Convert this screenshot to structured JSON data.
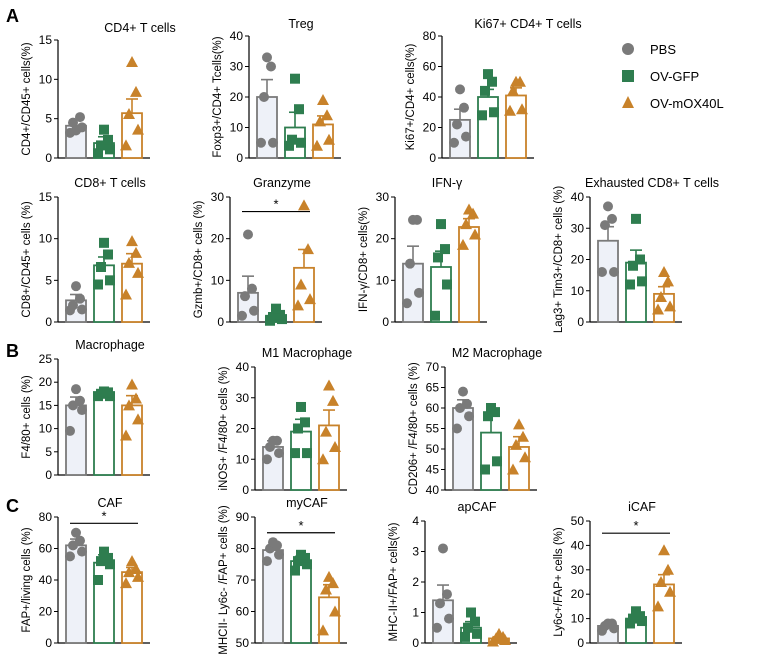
{
  "panel_labels": [
    "A",
    "B",
    "C"
  ],
  "colors": {
    "PBS": "#7a7a7a",
    "OV-GFP": "#2e7d4f",
    "OV-mOX40L": "#c8822a",
    "PBS_fill": "#eef1f8"
  },
  "legend": [
    "PBS",
    "OV-GFP",
    "OV-mOX40L"
  ],
  "chart_data": [
    {
      "id": "cd4",
      "type": "bar",
      "title": "CD4+ T cells",
      "ylabel": "CD4+/CD45+ cells(%)",
      "ylim": [
        0,
        15
      ],
      "yticks": [
        0,
        5,
        10,
        15
      ],
      "categories": [
        "PBS",
        "OV-GFP",
        "OV-mOX40L"
      ],
      "values": [
        4.1,
        1.9,
        5.7
      ],
      "errors": [
        0.8,
        0.8,
        1.8
      ],
      "points": [
        [
          3.2,
          3.9,
          4.5,
          5.2,
          3.5
        ],
        [
          0.6,
          1.1,
          1.6,
          2.3,
          3.6
        ],
        [
          1.6,
          3.6,
          5.6,
          8.4,
          12.2
        ]
      ],
      "sig": []
    },
    {
      "id": "treg",
      "type": "bar",
      "title": "Treg",
      "ylabel": "Foxp3+/CD4+ Tcells(%)",
      "ylim": [
        0,
        40
      ],
      "yticks": [
        0,
        10,
        20,
        30,
        40
      ],
      "categories": [
        "PBS",
        "OV-GFP",
        "OV-mOX40L"
      ],
      "values": [
        20.0,
        10.0,
        11.0
      ],
      "errors": [
        5.7,
        5.0,
        2.8
      ],
      "points": [
        [
          5,
          5,
          20,
          30,
          33
        ],
        [
          4,
          5,
          6,
          16,
          26
        ],
        [
          4,
          6,
          12,
          14,
          19
        ]
      ],
      "sig": []
    },
    {
      "id": "ki67",
      "type": "bar",
      "title": "Ki67+ CD4+ T cells",
      "ylabel": "Ki67+/CD4+ cells(%)",
      "ylim": [
        0,
        80
      ],
      "yticks": [
        0,
        20,
        40,
        60,
        80
      ],
      "categories": [
        "PBS",
        "OV-GFP",
        "OV-mOX40L"
      ],
      "values": [
        25,
        40,
        41
      ],
      "errors": [
        7,
        5,
        5
      ],
      "points": [
        [
          10,
          14,
          22,
          33,
          45
        ],
        [
          28,
          30,
          44,
          50,
          55
        ],
        [
          31,
          32,
          44,
          50,
          50
        ]
      ],
      "sig": []
    },
    {
      "id": "cd8",
      "type": "bar",
      "title": "CD8+ T cells",
      "ylabel": "CD8+/CD45+ cells (%)",
      "ylim": [
        0,
        15
      ],
      "yticks": [
        0,
        5,
        10,
        15
      ],
      "categories": [
        "PBS",
        "OV-GFP",
        "OV-mOX40L"
      ],
      "values": [
        2.6,
        6.8,
        7.0
      ],
      "errors": [
        0.7,
        1.0,
        1.2
      ],
      "points": [
        [
          1.4,
          1.5,
          2.0,
          2.8,
          4.3
        ],
        [
          4.5,
          5.0,
          6.6,
          8.1,
          9.5
        ],
        [
          3.3,
          5.9,
          7.1,
          8.3,
          9.7
        ]
      ],
      "sig": []
    },
    {
      "id": "gzmb",
      "type": "bar",
      "title": "Granzyme",
      "ylabel": "Gzmb+/CD8+ cells (%)",
      "ylim": [
        0,
        30
      ],
      "yticks": [
        0,
        10,
        20,
        30
      ],
      "categories": [
        "PBS",
        "OV-GFP",
        "OV-mOX40L"
      ],
      "values": [
        7.0,
        1.5,
        13.0
      ],
      "errors": [
        4.0,
        0.7,
        4.4
      ],
      "points": [
        [
          1.5,
          2.7,
          6.2,
          8.0,
          21.0
        ],
        [
          0.3,
          0.7,
          1.2,
          1.7,
          3.2
        ],
        [
          4.0,
          5.5,
          9.0,
          17.5,
          28.0
        ]
      ],
      "sig": [
        {
          "from": 0,
          "to": 2,
          "label": "*",
          "y": 26.5
        }
      ]
    },
    {
      "id": "ifng",
      "type": "bar",
      "title": "IFN-γ",
      "ylabel": "IFN-γ/CD8+ cells(%)",
      "ylim": [
        0,
        30
      ],
      "yticks": [
        0,
        10,
        20,
        30
      ],
      "categories": [
        "PBS",
        "OV-GFP",
        "OV-mOX40L"
      ],
      "values": [
        14.0,
        13.2,
        22.8
      ],
      "errors": [
        4.2,
        3.8,
        2.0
      ],
      "points": [
        [
          4.5,
          7.0,
          14.0,
          24.5,
          24.5
        ],
        [
          1.5,
          9.0,
          15.5,
          17.5,
          23.5
        ],
        [
          18.5,
          21.0,
          23.5,
          26.0,
          27.0
        ]
      ],
      "sig": []
    },
    {
      "id": "exh",
      "type": "bar",
      "title": "Exhausted CD8+ T cells",
      "ylabel": "Lag3+ Tim3+/CD8+ cells (%)",
      "ylim": [
        0,
        40
      ],
      "yticks": [
        0,
        10,
        20,
        30,
        40
      ],
      "categories": [
        "PBS",
        "OV-GFP",
        "OV-mOX40L"
      ],
      "values": [
        26,
        19,
        9
      ],
      "errors": [
        4.5,
        4.0,
        2.3
      ],
      "points": [
        [
          16,
          16,
          31,
          33,
          37
        ],
        [
          12,
          13,
          18,
          20,
          33
        ],
        [
          4,
          5,
          8,
          13,
          16
        ]
      ],
      "sig": []
    },
    {
      "id": "mac",
      "type": "bar",
      "title": "Macrophage",
      "ylabel": "F4/80+ cells (%)",
      "ylim": [
        0,
        25
      ],
      "yticks": [
        0,
        5,
        10,
        15,
        20,
        25
      ],
      "categories": [
        "PBS",
        "OV-GFP",
        "OV-mOX40L"
      ],
      "values": [
        15.0,
        17.5,
        15.0
      ],
      "errors": [
        1.8,
        0.5,
        2.1
      ],
      "points": [
        [
          9.5,
          14.0,
          15.0,
          16.0,
          18.5
        ],
        [
          17.0,
          17.0,
          17.5,
          17.8,
          18.0
        ],
        [
          8.5,
          12.0,
          15.0,
          16.5,
          19.5
        ]
      ],
      "sig": []
    },
    {
      "id": "m1",
      "type": "bar",
      "title": "M1 Macrophage",
      "ylabel": "iNOS+ /F4/80+ cells (%)",
      "ylim": [
        0,
        40
      ],
      "yticks": [
        0,
        10,
        20,
        30,
        40
      ],
      "categories": [
        "PBS",
        "OV-GFP",
        "OV-mOX40L"
      ],
      "values": [
        14,
        19,
        21
      ],
      "errors": [
        2,
        4,
        5
      ],
      "points": [
        [
          10,
          12,
          14,
          16,
          16
        ],
        [
          12,
          12,
          20,
          22,
          27
        ],
        [
          10,
          14,
          19,
          29,
          34
        ]
      ],
      "sig": []
    },
    {
      "id": "m2",
      "type": "bar",
      "title": "M2 Macrophage",
      "ylabel": "CD206+ /F4/80+ cells (%)",
      "ylim": [
        40,
        70
      ],
      "yticks": [
        40,
        45,
        50,
        55,
        60,
        65,
        70
      ],
      "categories": [
        "PBS",
        "OV-GFP",
        "OV-mOX40L"
      ],
      "values": [
        60,
        54,
        50.5
      ],
      "errors": [
        2,
        4,
        2.5
      ],
      "points": [
        [
          55,
          58,
          60,
          61,
          64
        ],
        [
          45,
          47,
          58,
          59,
          60
        ],
        [
          45,
          48,
          51,
          53,
          56
        ]
      ],
      "sig": []
    },
    {
      "id": "caf",
      "type": "bar",
      "title": "CAF",
      "ylabel": "FAP+/living cells (%)",
      "ylim": [
        0,
        80
      ],
      "yticks": [
        0,
        20,
        40,
        60,
        80
      ],
      "categories": [
        "PBS",
        "OV-GFP",
        "OV-mOX40L"
      ],
      "values": [
        62,
        51,
        45
      ],
      "errors": [
        4,
        5,
        3
      ],
      "points": [
        [
          55,
          58,
          62,
          65,
          70
        ],
        [
          40,
          50,
          52,
          54,
          58
        ],
        [
          38,
          42,
          45,
          47,
          52
        ]
      ],
      "sig": [
        {
          "from": 0,
          "to": 2,
          "label": "*",
          "y": 76
        }
      ]
    },
    {
      "id": "mycaf",
      "type": "bar",
      "title": "myCAF",
      "ylabel": "MHCII- Ly6c- /FAP+ cells (%)",
      "ylim": [
        50,
        90
      ],
      "yticks": [
        50,
        60,
        70,
        80,
        90
      ],
      "categories": [
        "PBS",
        "OV-GFP",
        "OV-mOX40L"
      ],
      "values": [
        79.5,
        76,
        64.5
      ],
      "errors": [
        1.5,
        1.5,
        4
      ],
      "points": [
        [
          76,
          78,
          80,
          81,
          82
        ],
        [
          73,
          75,
          76,
          77,
          78
        ],
        [
          54,
          60,
          67,
          69,
          71
        ]
      ],
      "sig": [
        {
          "from": 0,
          "to": 2,
          "label": "*",
          "y": 85
        }
      ]
    },
    {
      "id": "apcaf",
      "type": "bar",
      "title": "apCAF",
      "ylabel": "MHC-II+/FAP+ cells(%)",
      "ylim": [
        0,
        4
      ],
      "yticks": [
        0,
        1,
        2,
        3,
        4
      ],
      "categories": [
        "PBS",
        "OV-GFP",
        "OV-mOX40L"
      ],
      "values": [
        1.4,
        0.5,
        0.15
      ],
      "errors": [
        0.5,
        0.2,
        0.05
      ],
      "points": [
        [
          0.5,
          0.8,
          1.3,
          1.6,
          3.1
        ],
        [
          0.2,
          0.3,
          0.5,
          0.7,
          1.0
        ],
        [
          0.05,
          0.1,
          0.15,
          0.2,
          0.3
        ]
      ],
      "sig": []
    },
    {
      "id": "icaf",
      "type": "bar",
      "title": "iCAF",
      "ylabel": "Ly6c+/FAP+ cells (%)",
      "ylim": [
        0,
        50
      ],
      "yticks": [
        0,
        10,
        20,
        30,
        40,
        50
      ],
      "categories": [
        "PBS",
        "OV-GFP",
        "OV-mOX40L"
      ],
      "values": [
        7,
        10,
        24
      ],
      "errors": [
        0.8,
        1.5,
        4
      ],
      "points": [
        [
          5,
          6,
          7,
          8,
          8
        ],
        [
          8,
          9,
          10,
          11,
          13
        ],
        [
          15,
          21,
          25,
          30,
          38
        ]
      ],
      "sig": [
        {
          "from": 0,
          "to": 2,
          "label": "*",
          "y": 45
        }
      ]
    }
  ]
}
